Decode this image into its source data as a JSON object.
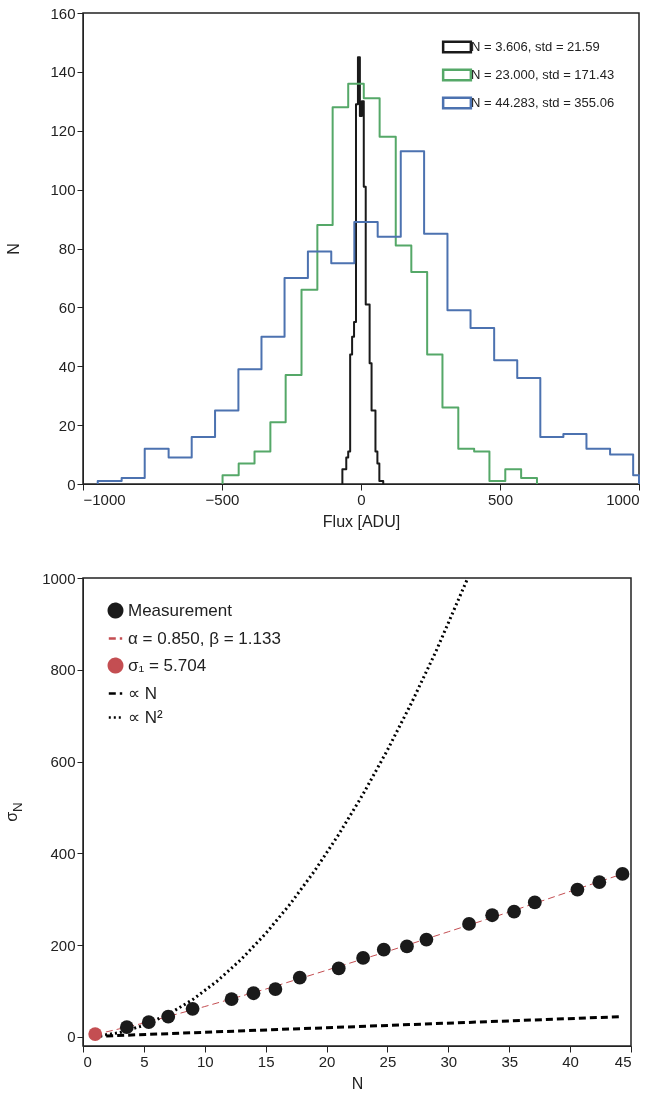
{
  "chart_data": [
    {
      "type": "step",
      "xlabel": "Flux [ADU]",
      "ylabel": "N",
      "xlim": [
        -1000,
        1000
      ],
      "xticks": [
        -1000,
        -500,
        0,
        500,
        1000
      ],
      "ylim": [
        0,
        160
      ],
      "yticks": [
        0,
        20,
        40,
        60,
        80,
        100,
        120,
        140,
        160
      ],
      "legend": "top right",
      "series": [
        {
          "name": "N = 3.606, std = 21.59",
          "color": "#1a1a1a",
          "x": [
            -67,
            -67,
            -60,
            -53,
            -46,
            -39,
            -32,
            -25,
            -18,
            -11,
            -4,
            3,
            10,
            17,
            24,
            31,
            38,
            45,
            52,
            59,
            66,
            73,
            80
          ],
          "values": [
            0,
            5,
            5,
            9,
            11,
            44,
            50,
            55,
            129,
            145,
            125,
            130,
            101,
            61,
            61,
            41,
            25,
            25,
            11,
            7,
            1,
            1,
            0
          ]
        },
        {
          "name": "N = 23.000, std = 171.43",
          "color": "#55a868",
          "x": [
            -498,
            -498,
            -440,
            -383,
            -326,
            -271,
            -214,
            -157,
            -102,
            -46,
            10,
            67,
            125,
            181,
            238,
            293,
            350,
            407,
            462,
            519,
            576,
            633
          ],
          "values": [
            0,
            3,
            7,
            11,
            21,
            37,
            66,
            88,
            128,
            136,
            131,
            118,
            81,
            72,
            44,
            26,
            12,
            11,
            1,
            5,
            2,
            0
          ]
        },
        {
          "name": "N = 44.283, std = 355.06",
          "color": "#4c72b0",
          "x": [
            -947,
            -947,
            -861,
            -778,
            -692,
            -609,
            -525,
            -441,
            -358,
            -275,
            -191,
            -107,
            -24,
            60,
            143,
            227,
            311,
            394,
            479,
            562,
            645,
            728,
            811,
            896,
            979,
            1000
          ],
          "values": [
            0,
            1,
            2,
            12,
            9,
            16,
            25,
            39,
            50,
            70,
            79,
            75,
            89,
            84,
            113,
            85,
            59,
            53,
            42,
            36,
            16,
            17,
            12,
            10,
            3,
            0
          ]
        }
      ]
    },
    {
      "type": "scatter",
      "xlabel": "N",
      "ylabel": "σ$_{N}$",
      "xlim": [
        0,
        45
      ],
      "xticks": [
        0,
        5,
        10,
        15,
        20,
        25,
        30,
        35,
        40,
        45
      ],
      "ylim": [
        -20,
        1000
      ],
      "yticks": [
        0,
        200,
        400,
        600,
        800,
        1000
      ],
      "legend": "top left",
      "series": [
        {
          "name": "Measurement",
          "type": "scatter",
          "color": "#1a1a1a",
          "x": [
            3.6,
            5.4,
            7.0,
            9.0,
            12.2,
            14.0,
            15.8,
            17.8,
            21.0,
            23.0,
            24.7,
            26.6,
            28.2,
            31.7,
            33.6,
            35.4,
            37.1,
            40.6,
            42.4,
            44.3
          ],
          "values": [
            21,
            32,
            44,
            61,
            82,
            95,
            104,
            129,
            149,
            172,
            190,
            197,
            212,
            246,
            265,
            273,
            293,
            321,
            337,
            355
          ]
        },
        {
          "name": "α = 0.850, β = 1.133",
          "type": "line",
          "line_style": "dashed",
          "color": "#c44e52",
          "x": [
            1,
            5,
            10,
            15,
            20,
            25,
            30,
            35,
            40,
            44.3
          ],
          "values": [
            5,
            30,
            66,
            104,
            145,
            186,
            229,
            272,
            317,
            355
          ]
        },
        {
          "name": "σ₁ = 5.704",
          "type": "scatter",
          "color": "#c44e52",
          "x": [
            1
          ],
          "values": [
            6
          ]
        },
        {
          "name": "∝ N",
          "type": "line",
          "line_style": "dashed",
          "color": "#000000",
          "x": [
            1,
            44.3
          ],
          "values": [
            1,
            44
          ]
        },
        {
          "name": "∝ N²",
          "type": "line",
          "line_style": "dotted",
          "color": "#000000",
          "x": [
            1,
            3,
            5,
            7,
            9,
            11,
            13,
            15,
            17,
            19,
            21,
            23,
            25,
            27,
            29,
            31.6
          ],
          "values": [
            1,
            9,
            25,
            49,
            81,
            121,
            169,
            225,
            289,
            361,
            441,
            529,
            625,
            729,
            841,
            1000
          ]
        }
      ]
    }
  ]
}
